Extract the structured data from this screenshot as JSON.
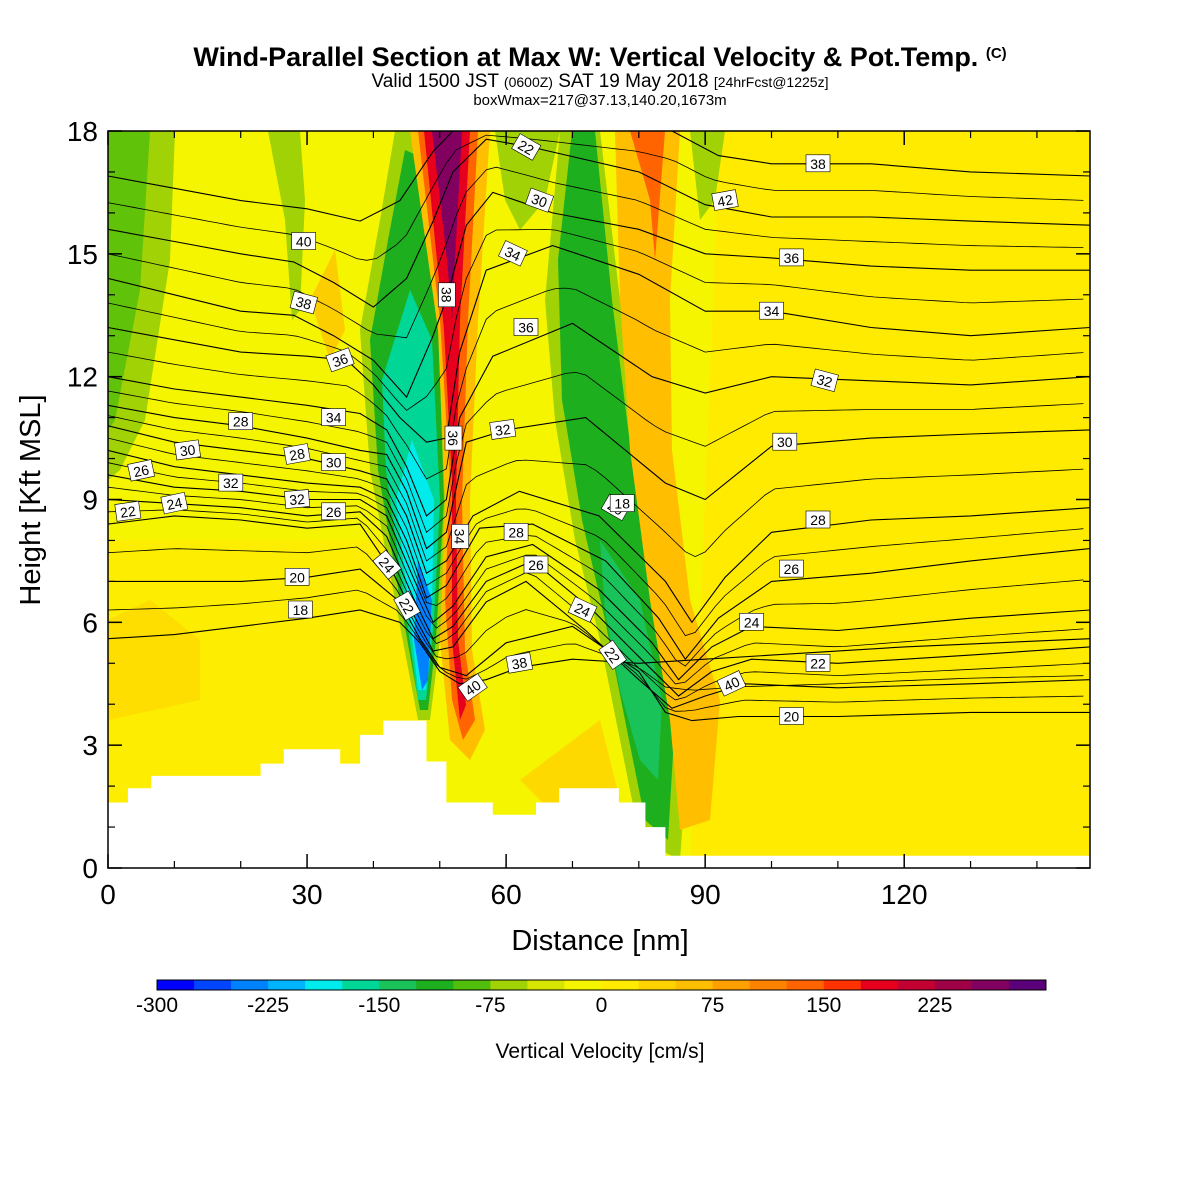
{
  "title": {
    "main": "Wind-Parallel Section at Max W: Vertical Velocity & Pot.Temp.",
    "copyright": "(C)",
    "valid_prefix": "Valid 1500 JST",
    "valid_utc": "(0600Z)",
    "valid_date": "SAT 19 May 2018",
    "forecast": "[24hrFcst@1225z]",
    "box": "boxWmax=217@37.13,140.20,1673m"
  },
  "chart_data": {
    "type": "heatmap",
    "xlabel": "Distance [nm]",
    "ylabel": "Height [Kft MSL]",
    "xlim": [
      0,
      148
    ],
    "ylim": [
      0,
      18
    ],
    "x_ticks": [
      "0",
      "30",
      "60",
      "90",
      "120"
    ],
    "y_ticks": [
      "0",
      "3",
      "6",
      "9",
      "12",
      "15",
      "18"
    ],
    "colorbar": {
      "label": "Vertical Velocity [cm/s]",
      "tick_labels": [
        "-300",
        "-225",
        "-150",
        "-75",
        "0",
        "75",
        "150",
        "225"
      ],
      "levels_from": -300,
      "levels_step": 25,
      "colors": [
        "#0000ff",
        "#0046ff",
        "#0082ff",
        "#00b4ff",
        "#00ebeb",
        "#00d796",
        "#19c35a",
        "#1eaf1e",
        "#50be0a",
        "#a0d205",
        "#d7e600",
        "#f5f500",
        "#ffeb00",
        "#ffd200",
        "#ffbe00",
        "#ffa000",
        "#ff8200",
        "#ff6400",
        "#ff3200",
        "#e6001e",
        "#c30032",
        "#a00046",
        "#82005f",
        "#5a0078"
      ]
    },
    "theta_contours": [
      {
        "label": "18",
        "pts": [
          [
            0,
            5.6
          ],
          [
            10,
            5.7
          ],
          [
            20,
            5.9
          ],
          [
            30,
            6.1
          ],
          [
            38,
            6.3
          ],
          [
            44,
            6.0
          ],
          [
            47,
            5.5
          ],
          [
            50,
            4.8
          ],
          [
            53,
            4.5
          ],
          [
            57,
            4.6
          ],
          [
            62,
            4.9
          ],
          [
            70,
            5.1
          ],
          [
            80,
            5.0
          ],
          [
            90,
            5.1
          ],
          [
            100,
            5.2
          ],
          [
            120,
            5.4
          ],
          [
            148,
            5.6
          ]
        ]
      },
      {
        "label": "20",
        "pts": [
          [
            0,
            7.0
          ],
          [
            10,
            7.0
          ],
          [
            20,
            7.0
          ],
          [
            30,
            7.1
          ],
          [
            38,
            7.3
          ],
          [
            44,
            6.5
          ],
          [
            47,
            5.6
          ],
          [
            50,
            4.9
          ],
          [
            54,
            4.7
          ],
          [
            60,
            5.5
          ],
          [
            70,
            5.9
          ],
          [
            80,
            4.8
          ],
          [
            84,
            3.8
          ],
          [
            88,
            3.6
          ],
          [
            95,
            3.7
          ],
          [
            110,
            3.7
          ],
          [
            130,
            3.8
          ],
          [
            148,
            3.8
          ]
        ]
      },
      {
        "label": "22",
        "pts": [
          [
            0,
            8.4
          ],
          [
            10,
            8.6
          ],
          [
            20,
            8.5
          ],
          [
            30,
            8.3
          ],
          [
            38,
            8.4
          ],
          [
            43,
            7.2
          ],
          [
            46,
            6.2
          ],
          [
            49,
            5.3
          ],
          [
            52,
            5.4
          ],
          [
            57,
            6.5
          ],
          [
            63,
            7.0
          ],
          [
            72,
            5.8
          ],
          [
            80,
            4.6
          ],
          [
            85,
            3.9
          ],
          [
            90,
            4.2
          ],
          [
            96,
            4.5
          ],
          [
            110,
            4.4
          ],
          [
            130,
            4.5
          ],
          [
            148,
            4.6
          ]
        ]
      },
      {
        "label": "24",
        "pts": [
          [
            0,
            9.0
          ],
          [
            10,
            8.9
          ],
          [
            20,
            8.8
          ],
          [
            30,
            8.6
          ],
          [
            38,
            8.7
          ],
          [
            42,
            8.1
          ],
          [
            46,
            6.6
          ],
          [
            49,
            5.6
          ],
          [
            52,
            5.9
          ],
          [
            57,
            7.0
          ],
          [
            64,
            7.5
          ],
          [
            73,
            6.3
          ],
          [
            81,
            5.0
          ],
          [
            86,
            4.2
          ],
          [
            91,
            4.8
          ],
          [
            97,
            5.1
          ],
          [
            110,
            5.0
          ],
          [
            130,
            5.2
          ],
          [
            148,
            5.4
          ]
        ]
      },
      {
        "label": "26",
        "pts": [
          [
            0,
            9.6
          ],
          [
            10,
            9.3
          ],
          [
            20,
            9.2
          ],
          [
            30,
            9.0
          ],
          [
            38,
            9.0
          ],
          [
            42,
            8.6
          ],
          [
            46,
            7.1
          ],
          [
            49,
            6.0
          ],
          [
            52,
            6.4
          ],
          [
            57,
            7.6
          ],
          [
            64,
            7.9
          ],
          [
            74,
            6.8
          ],
          [
            82,
            5.5
          ],
          [
            86,
            4.6
          ],
          [
            91,
            5.4
          ],
          [
            97,
            5.9
          ],
          [
            110,
            5.8
          ],
          [
            130,
            6.1
          ],
          [
            148,
            6.3
          ]
        ]
      },
      {
        "label": "28",
        "pts": [
          [
            0,
            10.2
          ],
          [
            10,
            9.8
          ],
          [
            20,
            9.6
          ],
          [
            30,
            9.4
          ],
          [
            38,
            9.3
          ],
          [
            42,
            9.0
          ],
          [
            45,
            8.0
          ],
          [
            48,
            6.6
          ],
          [
            51,
            6.9
          ],
          [
            56,
            8.3
          ],
          [
            64,
            8.4
          ],
          [
            75,
            7.5
          ],
          [
            83,
            6.1
          ],
          [
            87,
            5.1
          ],
          [
            92,
            6.1
          ],
          [
            100,
            7.0
          ],
          [
            115,
            7.2
          ],
          [
            130,
            7.5
          ],
          [
            148,
            7.8
          ]
        ]
      },
      {
        "label": "30",
        "pts": [
          [
            0,
            10.8
          ],
          [
            10,
            10.4
          ],
          [
            20,
            10.2
          ],
          [
            30,
            10.0
          ],
          [
            38,
            9.7
          ],
          [
            42,
            9.5
          ],
          [
            45,
            8.6
          ],
          [
            48,
            7.2
          ],
          [
            51,
            7.5
          ],
          [
            55,
            8.6
          ],
          [
            62,
            9.2
          ],
          [
            74,
            8.6
          ],
          [
            84,
            7.0
          ],
          [
            88,
            6.0
          ],
          [
            93,
            7.1
          ],
          [
            100,
            8.2
          ],
          [
            115,
            8.5
          ],
          [
            130,
            8.6
          ],
          [
            148,
            8.8
          ]
        ]
      },
      {
        "label": "32",
        "pts": [
          [
            0,
            11.3
          ],
          [
            10,
            11.0
          ],
          [
            20,
            10.8
          ],
          [
            30,
            10.5
          ],
          [
            38,
            10.2
          ],
          [
            42,
            10.1
          ],
          [
            45,
            9.2
          ],
          [
            48,
            7.8
          ],
          [
            51,
            8.2
          ],
          [
            54,
            10.4
          ],
          [
            60,
            10.7
          ],
          [
            72,
            11.0
          ],
          [
            84,
            9.4
          ],
          [
            90,
            9.0
          ],
          [
            100,
            10.3
          ],
          [
            115,
            10.5
          ],
          [
            130,
            10.6
          ],
          [
            148,
            10.7
          ]
        ]
      },
      {
        "label": "34",
        "pts": [
          [
            0,
            12.0
          ],
          [
            10,
            11.7
          ],
          [
            20,
            11.5
          ],
          [
            30,
            11.3
          ],
          [
            38,
            11.1
          ],
          [
            42,
            10.7
          ],
          [
            45,
            9.8
          ],
          [
            48,
            8.6
          ],
          [
            51,
            9.0
          ],
          [
            53,
            11.0
          ],
          [
            58,
            12.5
          ],
          [
            70,
            13.3
          ],
          [
            82,
            12.0
          ],
          [
            90,
            11.6
          ],
          [
            100,
            12.0
          ],
          [
            115,
            11.9
          ],
          [
            130,
            11.8
          ],
          [
            148,
            12.0
          ]
        ]
      },
      {
        "label": "36",
        "pts": [
          [
            0,
            13.2
          ],
          [
            10,
            12.9
          ],
          [
            20,
            12.6
          ],
          [
            30,
            12.5
          ],
          [
            36,
            12.4
          ],
          [
            40,
            11.8
          ],
          [
            44,
            11.0
          ],
          [
            48,
            10.4
          ],
          [
            51,
            10.5
          ],
          [
            53,
            12.6
          ],
          [
            57,
            14.6
          ],
          [
            67,
            15.2
          ],
          [
            80,
            14.5
          ],
          [
            90,
            13.6
          ],
          [
            100,
            13.6
          ],
          [
            115,
            13.2
          ],
          [
            130,
            13.0
          ],
          [
            148,
            13.2
          ]
        ]
      },
      {
        "label": "38",
        "pts": [
          [
            0,
            14.4
          ],
          [
            10,
            14.0
          ],
          [
            20,
            13.6
          ],
          [
            28,
            13.5
          ],
          [
            34,
            13.0
          ],
          [
            40,
            12.4
          ],
          [
            45,
            11.5
          ],
          [
            49,
            13.0
          ],
          [
            51,
            13.9
          ],
          [
            54,
            15.7
          ],
          [
            58,
            16.5
          ],
          [
            67,
            16.0
          ],
          [
            80,
            15.6
          ],
          [
            90,
            15.0
          ],
          [
            100,
            14.9
          ],
          [
            115,
            14.7
          ],
          [
            130,
            14.6
          ],
          [
            148,
            14.6
          ]
        ]
      },
      {
        "label": "40",
        "pts": [
          [
            0,
            15.6
          ],
          [
            10,
            15.3
          ],
          [
            20,
            15.0
          ],
          [
            28,
            14.8
          ],
          [
            34,
            14.3
          ],
          [
            40,
            13.7
          ],
          [
            45,
            14.4
          ],
          [
            49,
            15.8
          ],
          [
            52,
            17.0
          ],
          [
            57,
            17.8
          ],
          [
            64,
            17.6
          ],
          [
            80,
            17.0
          ],
          [
            90,
            16.2
          ],
          [
            100,
            15.9
          ],
          [
            115,
            15.9
          ],
          [
            130,
            15.8
          ],
          [
            148,
            15.7
          ]
        ]
      },
      {
        "label": "42",
        "pts": [
          [
            0,
            16.9
          ],
          [
            10,
            16.6
          ],
          [
            20,
            16.3
          ],
          [
            30,
            16.1
          ],
          [
            38,
            15.8
          ],
          [
            44,
            16.3
          ],
          [
            49,
            17.5
          ],
          [
            52,
            18.0
          ],
          [
            85,
            18.0
          ],
          [
            92,
            17.4
          ],
          [
            100,
            17.2
          ],
          [
            115,
            17.2
          ],
          [
            130,
            17.0
          ],
          [
            148,
            16.9
          ]
        ]
      }
    ],
    "contour_label_values": [
      "22",
      "26",
      "24",
      "30",
      "32",
      "28",
      "32",
      "28",
      "20",
      "18",
      "30",
      "26",
      "34",
      "36",
      "38",
      "40",
      "24",
      "22",
      "38",
      "36",
      "34",
      "32",
      "28",
      "26",
      "24",
      "22",
      "20",
      "18",
      "40",
      "38",
      "36",
      "34",
      "30",
      "22",
      "40",
      "42",
      "38",
      "36",
      "34",
      "32",
      "30",
      "28",
      "26",
      "24",
      "22",
      "20"
    ],
    "terrain_kft": [
      [
        0,
        1.6
      ],
      [
        3,
        1.6
      ],
      [
        3,
        1.95
      ],
      [
        6.5,
        1.95
      ],
      [
        6.5,
        2.25
      ],
      [
        23,
        2.25
      ],
      [
        23,
        2.55
      ],
      [
        26.5,
        2.55
      ],
      [
        26.5,
        2.9
      ],
      [
        35,
        2.9
      ],
      [
        35,
        2.55
      ],
      [
        38,
        2.55
      ],
      [
        38,
        3.25
      ],
      [
        41.5,
        3.25
      ],
      [
        41.5,
        3.6
      ],
      [
        48,
        3.6
      ],
      [
        48,
        2.6
      ],
      [
        51,
        2.6
      ],
      [
        51,
        1.6
      ],
      [
        58,
        1.6
      ],
      [
        58,
        1.3
      ],
      [
        64.5,
        1.3
      ],
      [
        64.5,
        1.6
      ],
      [
        68,
        1.6
      ],
      [
        68,
        1.95
      ],
      [
        77,
        1.95
      ],
      [
        77,
        1.6
      ],
      [
        81,
        1.6
      ],
      [
        81,
        1.0
      ],
      [
        84,
        1.0
      ],
      [
        84,
        0.3
      ],
      [
        148,
        0.3
      ]
    ]
  }
}
